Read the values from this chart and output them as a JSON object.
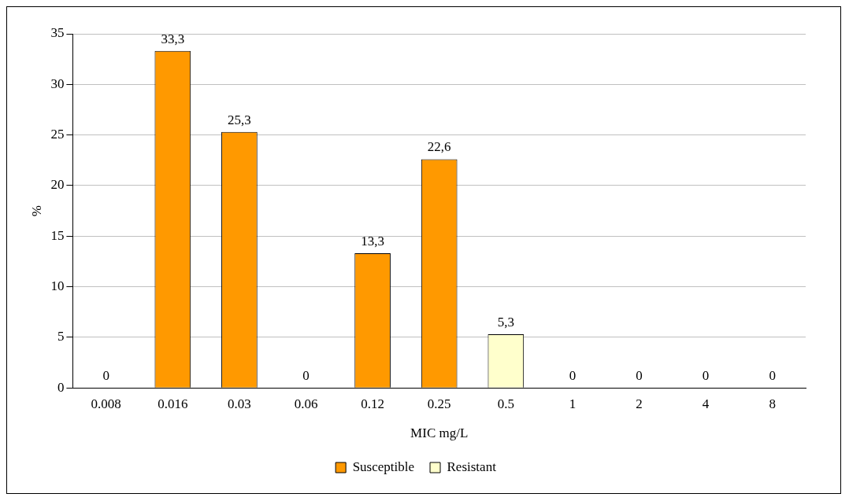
{
  "chart_data": {
    "type": "bar",
    "xlabel": "MIC mg/L",
    "ylabel": "%",
    "categories": [
      "0.008",
      "0.016",
      "0.03",
      "0.06",
      "0.12",
      "0.25",
      "0.5",
      "1",
      "2",
      "4",
      "8"
    ],
    "series": [
      {
        "name": "Susceptible",
        "color": "#ff9900",
        "values": [
          0,
          33.3,
          25.3,
          0,
          13.3,
          22.6,
          null,
          null,
          null,
          null,
          null
        ],
        "value_labels": [
          "0",
          "33,3",
          "25,3",
          "0",
          "13,3",
          "22,6",
          null,
          null,
          null,
          null,
          null
        ]
      },
      {
        "name": "Resistant",
        "color": "#ffffcc",
        "values": [
          null,
          null,
          null,
          null,
          null,
          null,
          5.3,
          0,
          0,
          0,
          0
        ],
        "value_labels": [
          null,
          null,
          null,
          null,
          null,
          null,
          "5,3",
          "0",
          "0",
          "0",
          "0"
        ]
      }
    ],
    "ylim": [
      0,
      35
    ],
    "yticks": [
      0,
      5,
      10,
      15,
      20,
      25,
      30,
      35
    ],
    "grid": "y",
    "legend": "bottom"
  }
}
